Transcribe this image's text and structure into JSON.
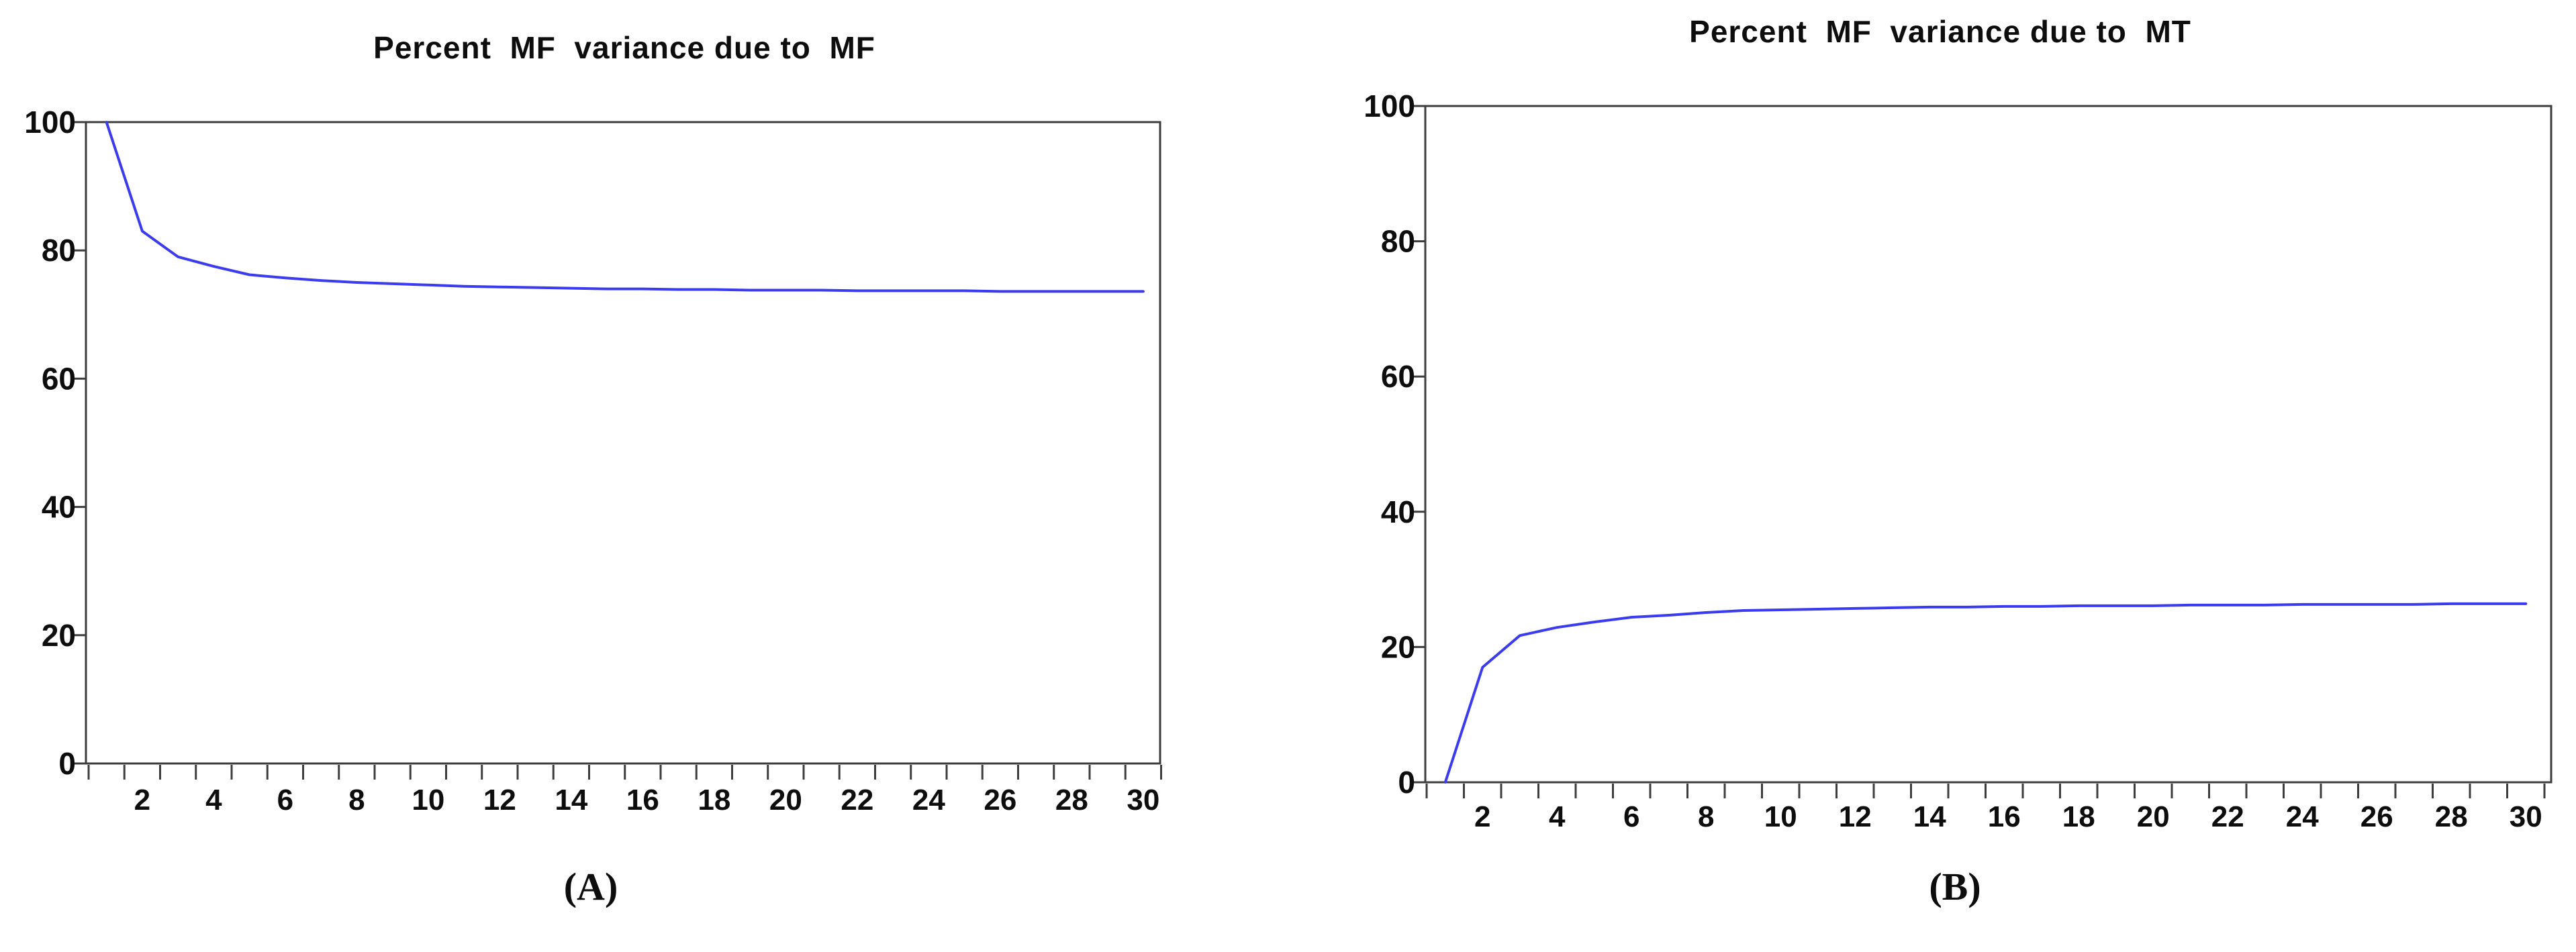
{
  "figure": {
    "background": "#ffffff",
    "panels": [
      {
        "label": "(A)"
      },
      {
        "label": "(B)"
      }
    ]
  },
  "chart_data": [
    {
      "type": "line",
      "title": "Percent  MF  variance due to  MF",
      "x": [
        1,
        2,
        3,
        4,
        5,
        6,
        7,
        8,
        9,
        10,
        11,
        12,
        13,
        14,
        15,
        16,
        17,
        18,
        19,
        20,
        21,
        22,
        23,
        24,
        25,
        26,
        27,
        28,
        29,
        30
      ],
      "values": [
        100,
        83,
        79,
        77.5,
        76.2,
        75.7,
        75.3,
        75,
        74.8,
        74.6,
        74.4,
        74.3,
        74.2,
        74.1,
        74,
        74,
        73.9,
        73.9,
        73.8,
        73.8,
        73.8,
        73.7,
        73.7,
        73.7,
        73.7,
        73.6,
        73.6,
        73.6,
        73.6,
        73.6
      ],
      "xticks": [
        2,
        4,
        6,
        8,
        10,
        12,
        14,
        16,
        18,
        20,
        22,
        24,
        26,
        28,
        30
      ],
      "yticks": [
        0,
        20,
        40,
        60,
        80,
        100
      ],
      "xlim": [
        0.5,
        30.5
      ],
      "ylim": [
        0,
        100
      ],
      "grid": false,
      "legend": null,
      "line_color": "#3b3bef",
      "axis_color": "#3d3d3d"
    },
    {
      "type": "line",
      "title": "Percent  MF  variance due to  MT",
      "x": [
        1,
        2,
        3,
        4,
        5,
        6,
        7,
        8,
        9,
        10,
        11,
        12,
        13,
        14,
        15,
        16,
        17,
        18,
        19,
        20,
        21,
        22,
        23,
        24,
        25,
        26,
        27,
        28,
        29,
        30
      ],
      "values": [
        0,
        17,
        21.7,
        22.9,
        23.7,
        24.4,
        24.7,
        25.1,
        25.4,
        25.5,
        25.6,
        25.7,
        25.8,
        25.9,
        25.9,
        26,
        26,
        26.1,
        26.1,
        26.1,
        26.2,
        26.2,
        26.2,
        26.3,
        26.3,
        26.3,
        26.3,
        26.4,
        26.4,
        26.4
      ],
      "xticks": [
        2,
        4,
        6,
        8,
        10,
        12,
        14,
        16,
        18,
        20,
        22,
        24,
        26,
        28,
        30
      ],
      "yticks": [
        0,
        20,
        40,
        60,
        80,
        100
      ],
      "xlim": [
        0.5,
        30.5
      ],
      "ylim": [
        0,
        100
      ],
      "grid": false,
      "legend": null,
      "line_color": "#3b3bef",
      "axis_color": "#3d3d3d"
    }
  ]
}
